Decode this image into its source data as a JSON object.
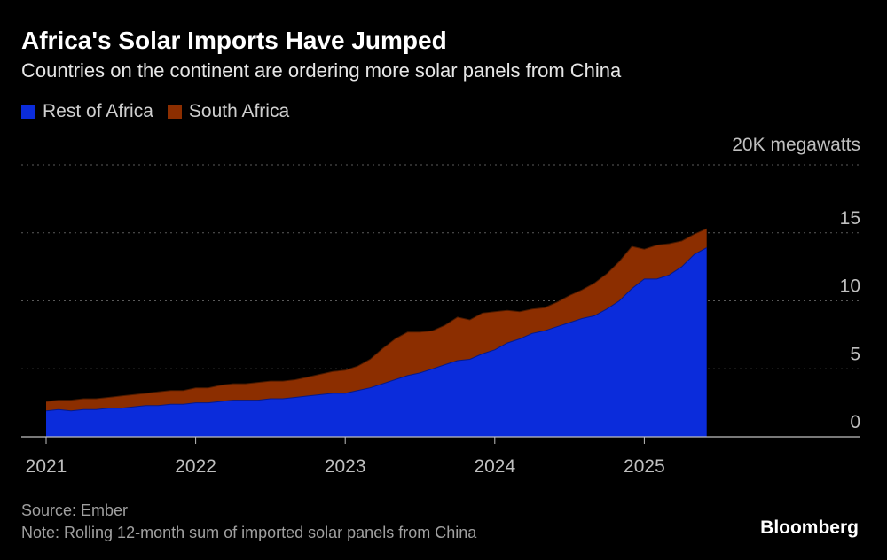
{
  "header": {
    "title": "Africa's Solar Imports Have Jumped",
    "subtitle": "Countries on the continent are ordering more solar panels from China"
  },
  "legend": {
    "items": [
      {
        "label": "Rest of Africa",
        "color": "#0b2cdb"
      },
      {
        "label": "South Africa",
        "color": "#8c2e00"
      }
    ]
  },
  "footer": {
    "source": "Source: Ember",
    "note": "Note: Rolling 12-month sum of imported solar panels from China",
    "brand": "Bloomberg"
  },
  "chart_data": {
    "type": "area",
    "stacked": true,
    "title": "Africa's Solar Imports Have Jumped",
    "subtitle": "Countries on the continent are ordering more solar panels from China",
    "unit_label": "20K megawatts",
    "y_ticks": [
      0,
      5,
      10,
      15,
      20
    ],
    "y_tick_labels": [
      "0",
      "5",
      "10",
      "15",
      "20K megawatts"
    ],
    "ylim": [
      0,
      20
    ],
    "x_tick_labels": [
      "2021",
      "2022",
      "2023",
      "2024",
      "2025"
    ],
    "grid": true,
    "legend_position": "top-left",
    "x": [
      "2021-01",
      "2021-02",
      "2021-03",
      "2021-04",
      "2021-05",
      "2021-06",
      "2021-07",
      "2021-08",
      "2021-09",
      "2021-10",
      "2021-11",
      "2021-12",
      "2022-01",
      "2022-02",
      "2022-03",
      "2022-04",
      "2022-05",
      "2022-06",
      "2022-07",
      "2022-08",
      "2022-09",
      "2022-10",
      "2022-11",
      "2022-12",
      "2023-01",
      "2023-02",
      "2023-03",
      "2023-04",
      "2023-05",
      "2023-06",
      "2023-07",
      "2023-08",
      "2023-09",
      "2023-10",
      "2023-11",
      "2023-12",
      "2024-01",
      "2024-02",
      "2024-03",
      "2024-04",
      "2024-05",
      "2024-06",
      "2024-07",
      "2024-08",
      "2024-09",
      "2024-10",
      "2024-11",
      "2024-12",
      "2025-01",
      "2025-02",
      "2025-03",
      "2025-04",
      "2025-05",
      "2025-06"
    ],
    "series": [
      {
        "name": "Rest of Africa",
        "color": "#0b2cdb",
        "values": [
          1.9,
          2.0,
          1.9,
          2.0,
          2.0,
          2.1,
          2.1,
          2.2,
          2.3,
          2.3,
          2.4,
          2.4,
          2.5,
          2.5,
          2.6,
          2.7,
          2.7,
          2.7,
          2.8,
          2.8,
          2.9,
          3.0,
          3.1,
          3.2,
          3.2,
          3.4,
          3.6,
          3.9,
          4.2,
          4.5,
          4.7,
          5.0,
          5.3,
          5.6,
          5.7,
          6.1,
          6.4,
          6.9,
          7.2,
          7.6,
          7.8,
          8.1,
          8.4,
          8.7,
          8.9,
          9.4,
          10.0,
          10.9,
          11.6,
          11.6,
          11.9,
          12.5,
          13.4,
          13.9
        ]
      },
      {
        "name": "South Africa",
        "color": "#8c2e00",
        "values": [
          0.7,
          0.7,
          0.8,
          0.8,
          0.8,
          0.8,
          0.9,
          0.9,
          0.9,
          1.0,
          1.0,
          1.0,
          1.1,
          1.1,
          1.2,
          1.2,
          1.2,
          1.3,
          1.3,
          1.3,
          1.3,
          1.4,
          1.5,
          1.6,
          1.7,
          1.8,
          2.1,
          2.6,
          3.0,
          3.2,
          3.0,
          2.8,
          2.9,
          3.2,
          2.9,
          3.0,
          2.8,
          2.4,
          2.0,
          1.8,
          1.7,
          1.8,
          2.0,
          2.1,
          2.4,
          2.6,
          2.9,
          3.1,
          2.2,
          2.5,
          2.3,
          1.9,
          1.5,
          1.4
        ]
      }
    ]
  }
}
